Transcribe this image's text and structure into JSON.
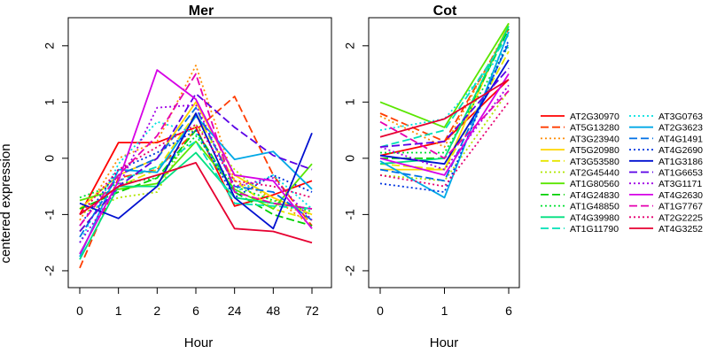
{
  "chart_data": [
    {
      "type": "line",
      "title": "Mer",
      "xlabel": "Hour",
      "ylabel": "centered expression",
      "categories": [
        "0",
        "1",
        "2",
        "6",
        "24",
        "48",
        "72"
      ],
      "ylim": [
        -2.3,
        2.5
      ],
      "yticks": [
        -2,
        -1,
        0,
        1,
        2
      ],
      "series": [
        {
          "name": "AT2G30970",
          "values": [
            -1.0,
            0.28,
            0.28,
            0.55,
            -0.85,
            -0.65,
            -0.4
          ]
        },
        {
          "name": "AT5G13280",
          "values": [
            -1.95,
            -0.35,
            -0.2,
            0.5,
            1.1,
            -0.3,
            -1.2
          ]
        },
        {
          "name": "AT3G23940",
          "values": [
            -1.1,
            0.0,
            0.3,
            1.65,
            -0.4,
            -0.7,
            -1.2
          ]
        },
        {
          "name": "AT5G20980",
          "values": [
            -0.9,
            -0.3,
            0.0,
            1.0,
            -0.3,
            -0.7,
            -1.0
          ]
        },
        {
          "name": "AT3G53580",
          "values": [
            -1.3,
            -0.5,
            -0.2,
            0.8,
            -0.4,
            -0.9,
            -1.1
          ]
        },
        {
          "name": "AT2G45440",
          "values": [
            -1.0,
            -0.7,
            -0.6,
            0.6,
            -0.2,
            -0.8,
            -1.0
          ]
        },
        {
          "name": "AT1G80560",
          "values": [
            -0.75,
            -0.55,
            -0.45,
            0.3,
            -0.55,
            -0.9,
            -0.1
          ]
        },
        {
          "name": "AT4G24830",
          "values": [
            -0.9,
            -0.6,
            -0.35,
            0.5,
            -0.6,
            -1.0,
            -1.2
          ]
        },
        {
          "name": "AT1G48850",
          "values": [
            -0.7,
            -0.45,
            -0.35,
            0.4,
            -0.5,
            -0.75,
            -0.95
          ]
        },
        {
          "name": "AT4G39980",
          "values": [
            -1.8,
            -0.5,
            -0.5,
            0.1,
            -0.7,
            -0.8,
            -0.9
          ]
        },
        {
          "name": "AT1G11790",
          "values": [
            -1.7,
            -0.4,
            -0.15,
            0.3,
            -0.8,
            -0.85,
            -0.9
          ]
        },
        {
          "name": "AT3G0763",
          "values": [
            -1.5,
            -0.1,
            0.65,
            0.45,
            -0.6,
            -0.3,
            -0.9
          ]
        },
        {
          "name": "AT2G3623",
          "values": [
            -1.75,
            -0.2,
            -0.25,
            0.75,
            -0.02,
            0.12,
            -0.55
          ]
        },
        {
          "name": "AT4G1491",
          "values": [
            -1.4,
            -0.3,
            0.0,
            0.9,
            -0.5,
            -0.6,
            -1.1
          ]
        },
        {
          "name": "AT4G2690",
          "values": [
            -1.2,
            -0.2,
            0.1,
            0.5,
            -0.7,
            -0.3,
            -0.6
          ]
        },
        {
          "name": "AT1G3186",
          "values": [
            -0.8,
            -1.07,
            -0.5,
            0.8,
            -0.7,
            -1.25,
            0.45
          ]
        },
        {
          "name": "AT1G6653",
          "values": [
            -1.3,
            -0.5,
            0.0,
            1.15,
            0.55,
            0.05,
            -0.2
          ]
        },
        {
          "name": "AT3G1171",
          "values": [
            -1.5,
            -0.5,
            0.9,
            0.95,
            -0.5,
            -0.35,
            -1.1
          ]
        },
        {
          "name": "AT4G2630",
          "values": [
            -1.7,
            -0.4,
            1.57,
            1.05,
            -0.3,
            -0.4,
            -1.25
          ]
        },
        {
          "name": "AT1G7767",
          "values": [
            -1.2,
            -0.3,
            0.4,
            1.5,
            -0.6,
            -0.8,
            -0.9
          ]
        },
        {
          "name": "AT2G2225",
          "values": [
            -1.0,
            -0.2,
            0.2,
            0.6,
            -0.4,
            -0.5,
            -0.7
          ]
        },
        {
          "name": "AT4G3252",
          "values": [
            -1.0,
            -0.5,
            -0.3,
            -0.08,
            -1.25,
            -1.3,
            -1.5
          ]
        }
      ]
    },
    {
      "type": "line",
      "title": "Cot",
      "xlabel": "Hour",
      "categories": [
        "0",
        "1",
        "6"
      ],
      "ylim": [
        -2.3,
        2.5
      ],
      "yticks": [
        -2,
        -1,
        0,
        1,
        2
      ],
      "series": [
        {
          "name": "AT2G30970",
          "values": [
            0.05,
            0.3,
            1.4
          ]
        },
        {
          "name": "AT5G13280",
          "values": [
            0.8,
            0.3,
            2.3
          ]
        },
        {
          "name": "AT3G23940",
          "values": [
            0.75,
            0.2,
            2.35
          ]
        },
        {
          "name": "AT5G20980",
          "values": [
            -0.2,
            -0.2,
            2.4
          ]
        },
        {
          "name": "AT3G53580",
          "values": [
            -0.1,
            -0.2,
            1.9
          ]
        },
        {
          "name": "AT2G45440",
          "values": [
            -0.3,
            -0.4,
            1.2
          ]
        },
        {
          "name": "AT1G80560",
          "values": [
            1.0,
            0.55,
            2.4
          ]
        },
        {
          "name": "AT4G24830",
          "values": [
            0.0,
            0.0,
            2.3
          ]
        },
        {
          "name": "AT1G48850",
          "values": [
            0.1,
            0.1,
            2.0
          ]
        },
        {
          "name": "AT4G39980",
          "values": [
            -0.1,
            0.0,
            2.35
          ]
        },
        {
          "name": "AT1G11790",
          "values": [
            0.2,
            0.5,
            2.2
          ]
        },
        {
          "name": "AT3G0763",
          "values": [
            0.5,
            0.7,
            2.0
          ]
        },
        {
          "name": "AT2G3623",
          "values": [
            -0.05,
            -0.7,
            2.25
          ]
        },
        {
          "name": "AT4G1491",
          "values": [
            -0.2,
            -0.4,
            2.05
          ]
        },
        {
          "name": "AT4G2690",
          "values": [
            -0.45,
            -0.6,
            2.1
          ]
        },
        {
          "name": "AT1G3186",
          "values": [
            0.05,
            -0.1,
            1.75
          ]
        },
        {
          "name": "AT1G6653",
          "values": [
            0.2,
            0.3,
            1.6
          ]
        },
        {
          "name": "AT3G1171",
          "values": [
            0.2,
            -0.2,
            1.3
          ]
        },
        {
          "name": "AT4G2630",
          "values": [
            0.0,
            -0.3,
            1.5
          ]
        },
        {
          "name": "AT1G7767",
          "values": [
            0.65,
            0.0,
            1.2
          ]
        },
        {
          "name": "AT2G2225",
          "values": [
            -0.3,
            -0.5,
            1.0
          ]
        },
        {
          "name": "AT4G3252",
          "values": [
            0.38,
            0.7,
            1.4
          ]
        }
      ]
    }
  ],
  "legend": {
    "columns": [
      [
        "AT2G30970",
        "AT5G13280",
        "AT3G23940",
        "AT5G20980",
        "AT3G53580",
        "AT2G45440",
        "AT1G80560",
        "AT4G24830",
        "AT1G48850",
        "AT4G39980",
        "AT1G11790"
      ],
      [
        "AT3G0763",
        "AT2G3623",
        "AT4G1491",
        "AT4G2690",
        "AT1G3186",
        "AT1G6653",
        "AT3G1171",
        "AT4G2630",
        "AT1G7767",
        "AT2G2225",
        "AT4G3252"
      ]
    ],
    "placement": "right"
  },
  "series_styles": [
    {
      "color": "#ff0000",
      "dash": "solid"
    },
    {
      "color": "#ff3c00",
      "dash": "dashed"
    },
    {
      "color": "#ff8c00",
      "dash": "dotted"
    },
    {
      "color": "#ffd500",
      "dash": "solid"
    },
    {
      "color": "#e6e600",
      "dash": "dashed"
    },
    {
      "color": "#b0e600",
      "dash": "dotted"
    },
    {
      "color": "#5ae600",
      "dash": "solid"
    },
    {
      "color": "#00d000",
      "dash": "dashed"
    },
    {
      "color": "#00e030",
      "dash": "dotted"
    },
    {
      "color": "#00e080",
      "dash": "solid"
    },
    {
      "color": "#00e0b8",
      "dash": "dashed"
    },
    {
      "color": "#00e0e0",
      "dash": "dotted"
    },
    {
      "color": "#00a8e6",
      "dash": "solid"
    },
    {
      "color": "#0070e6",
      "dash": "dashed"
    },
    {
      "color": "#0035e0",
      "dash": "dotted"
    },
    {
      "color": "#0010d0",
      "dash": "solid"
    },
    {
      "color": "#5a00e6",
      "dash": "dashed"
    },
    {
      "color": "#a000e6",
      "dash": "dotted"
    },
    {
      "color": "#d600e6",
      "dash": "solid"
    },
    {
      "color": "#e600b0",
      "dash": "dashed"
    },
    {
      "color": "#e60070",
      "dash": "dotted"
    },
    {
      "color": "#e60030",
      "dash": "solid"
    }
  ]
}
